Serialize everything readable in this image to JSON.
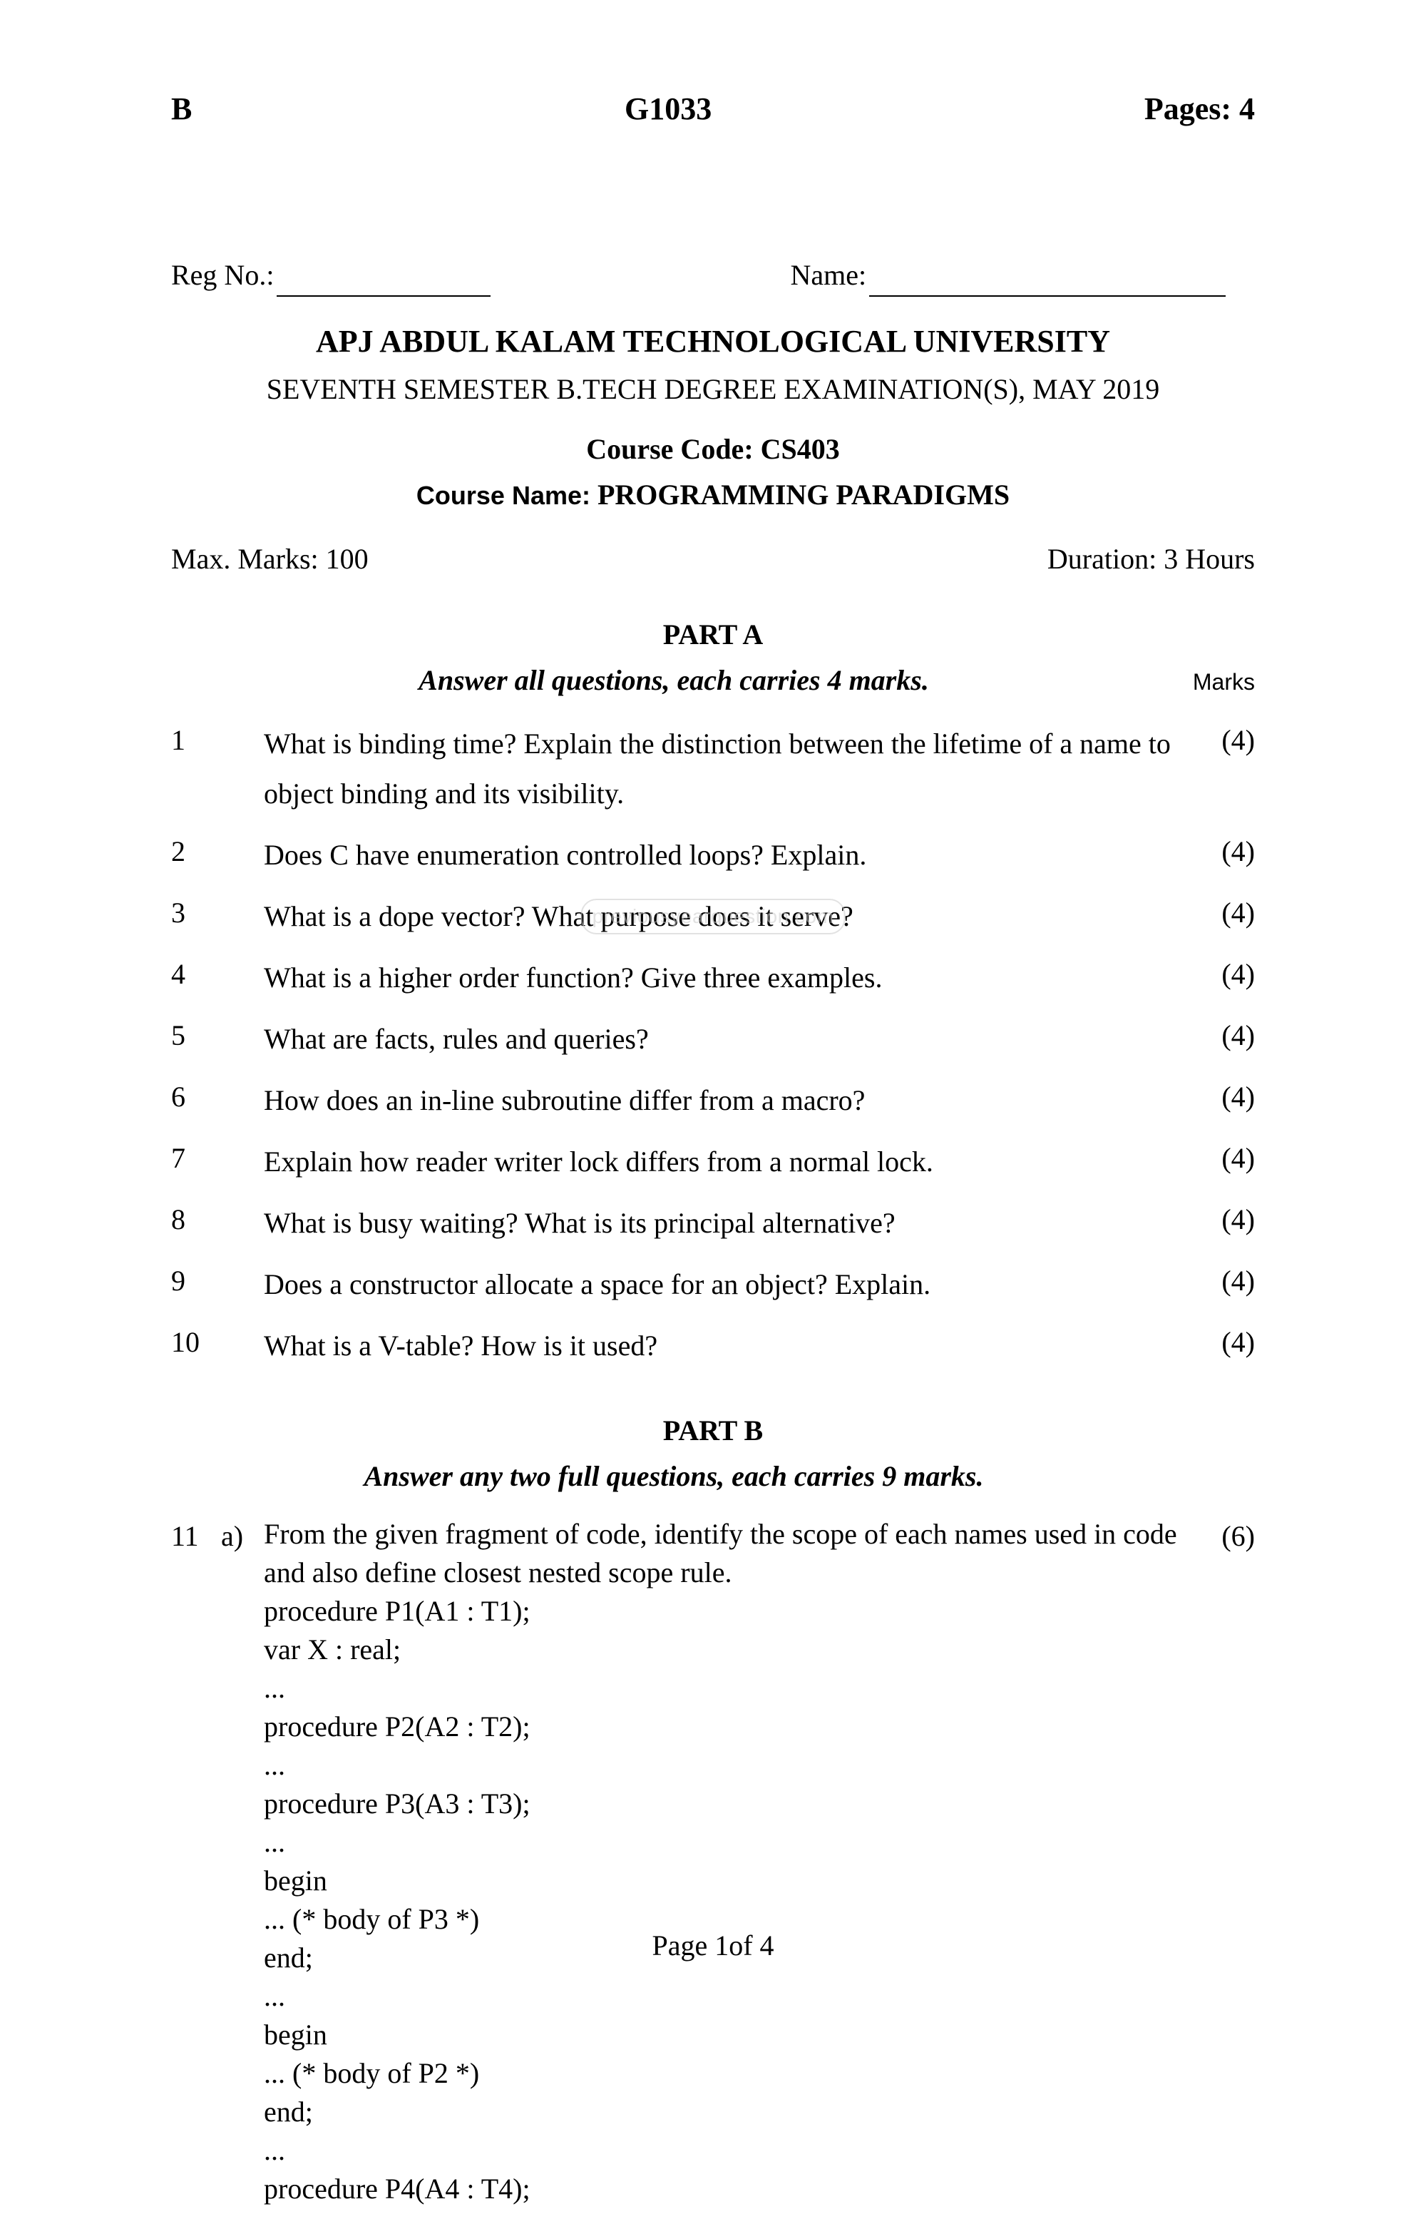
{
  "header": {
    "left": "B",
    "center": "G1033",
    "right": "Pages: 4"
  },
  "reg": {
    "reg_label": "Reg No.:",
    "name_label": "Name:"
  },
  "title": {
    "university": "APJ ABDUL KALAM TECHNOLOGICAL UNIVERSITY",
    "exam_line": "SEVENTH SEMESTER B.TECH DEGREE EXAMINATION(S), MAY 2019",
    "course_code": "Course Code: CS403",
    "course_name_label": "Course Name: ",
    "course_name_value": "PROGRAMMING PARADIGMS"
  },
  "limits": {
    "max_marks": "Max. Marks: 100",
    "duration": "Duration: 3 Hours"
  },
  "partA": {
    "title": "PART A",
    "instruction": "Answer all questions, each carries 4 marks.",
    "marks_heading": "Marks",
    "questions": [
      {
        "num": "1",
        "text": "What is binding time? Explain the distinction between the lifetime of a name to object binding and its visibility.",
        "marks": "(4)"
      },
      {
        "num": "2",
        "text": "Does C have enumeration controlled loops? Explain.",
        "marks": "(4)"
      },
      {
        "num": "3",
        "text": "What is a dope vector? What purpose does it serve?",
        "marks": "(4)"
      },
      {
        "num": "4",
        "text": "What is a higher order function? Give three examples.",
        "marks": "(4)"
      },
      {
        "num": "5",
        "text": "What are facts, rules and queries?",
        "marks": "(4)"
      },
      {
        "num": "6",
        "text": "How does an in-line subroutine differ from a macro?",
        "marks": "(4)"
      },
      {
        "num": "7",
        "text": "Explain how reader writer lock differs from a normal lock.",
        "marks": "(4)"
      },
      {
        "num": "8",
        "text": "What is busy waiting? What is its principal alternative?",
        "marks": "(4)"
      },
      {
        "num": "9",
        "text": "Does a constructor allocate a space for an object? Explain.",
        "marks": "(4)"
      },
      {
        "num": "10",
        "text": "What is a V-table? How is it used?",
        "marks": "(4)"
      }
    ]
  },
  "partB": {
    "title": "PART B",
    "instruction": "Answer any two full questions, each carries 9 marks.",
    "q11a": {
      "num": "11",
      "sub": "a)",
      "marks": "(6)",
      "lines": [
        "From the given fragment of code, identify the scope of each names used in code and also define closest nested scope rule.",
        "procedure P1(A1 : T1);",
        "var X : real;",
        "...",
        "procedure P2(A2 : T2);",
        "...",
        "procedure P3(A3 : T3);",
        "...",
        "begin",
        "... (* body of P3 *)",
        "end;",
        "...",
        "begin",
        "... (* body of P2 *)",
        "end;",
        "...",
        "procedure P4(A4 : T4);"
      ]
    }
  },
  "watermark": "previousyearquestion.com",
  "page_number": "Page 1of 4"
}
